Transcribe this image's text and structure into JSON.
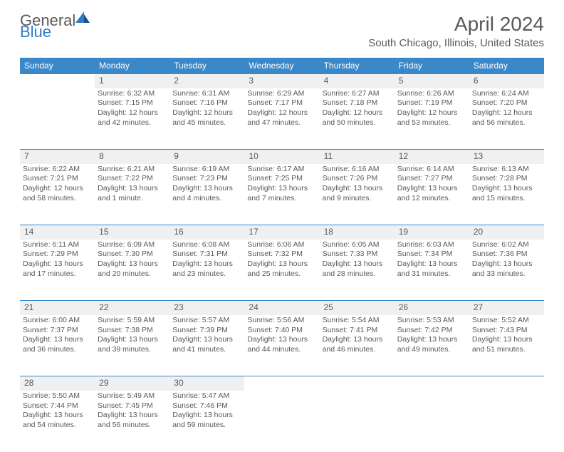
{
  "brand": {
    "part1": "General",
    "part2": "Blue"
  },
  "title": "April 2024",
  "location": "South Chicago, Illinois, United States",
  "colors": {
    "header_bg": "#3b88c8",
    "header_text": "#ffffff",
    "daynum_bg": "#eef0f2",
    "text": "#595959",
    "border": "#3b88c8",
    "page_bg": "#ffffff",
    "brand_blue": "#2f7cc4"
  },
  "weekdays": [
    "Sunday",
    "Monday",
    "Tuesday",
    "Wednesday",
    "Thursday",
    "Friday",
    "Saturday"
  ],
  "weeks": [
    {
      "nums": [
        "",
        "1",
        "2",
        "3",
        "4",
        "5",
        "6"
      ],
      "cells": [
        null,
        {
          "sr": "Sunrise: 6:32 AM",
          "ss": "Sunset: 7:15 PM",
          "d1": "Daylight: 12 hours",
          "d2": "and 42 minutes."
        },
        {
          "sr": "Sunrise: 6:31 AM",
          "ss": "Sunset: 7:16 PM",
          "d1": "Daylight: 12 hours",
          "d2": "and 45 minutes."
        },
        {
          "sr": "Sunrise: 6:29 AM",
          "ss": "Sunset: 7:17 PM",
          "d1": "Daylight: 12 hours",
          "d2": "and 47 minutes."
        },
        {
          "sr": "Sunrise: 6:27 AM",
          "ss": "Sunset: 7:18 PM",
          "d1": "Daylight: 12 hours",
          "d2": "and 50 minutes."
        },
        {
          "sr": "Sunrise: 6:26 AM",
          "ss": "Sunset: 7:19 PM",
          "d1": "Daylight: 12 hours",
          "d2": "and 53 minutes."
        },
        {
          "sr": "Sunrise: 6:24 AM",
          "ss": "Sunset: 7:20 PM",
          "d1": "Daylight: 12 hours",
          "d2": "and 56 minutes."
        }
      ]
    },
    {
      "nums": [
        "7",
        "8",
        "9",
        "10",
        "11",
        "12",
        "13"
      ],
      "cells": [
        {
          "sr": "Sunrise: 6:22 AM",
          "ss": "Sunset: 7:21 PM",
          "d1": "Daylight: 12 hours",
          "d2": "and 58 minutes."
        },
        {
          "sr": "Sunrise: 6:21 AM",
          "ss": "Sunset: 7:22 PM",
          "d1": "Daylight: 13 hours",
          "d2": "and 1 minute."
        },
        {
          "sr": "Sunrise: 6:19 AM",
          "ss": "Sunset: 7:23 PM",
          "d1": "Daylight: 13 hours",
          "d2": "and 4 minutes."
        },
        {
          "sr": "Sunrise: 6:17 AM",
          "ss": "Sunset: 7:25 PM",
          "d1": "Daylight: 13 hours",
          "d2": "and 7 minutes."
        },
        {
          "sr": "Sunrise: 6:16 AM",
          "ss": "Sunset: 7:26 PM",
          "d1": "Daylight: 13 hours",
          "d2": "and 9 minutes."
        },
        {
          "sr": "Sunrise: 6:14 AM",
          "ss": "Sunset: 7:27 PM",
          "d1": "Daylight: 13 hours",
          "d2": "and 12 minutes."
        },
        {
          "sr": "Sunrise: 6:13 AM",
          "ss": "Sunset: 7:28 PM",
          "d1": "Daylight: 13 hours",
          "d2": "and 15 minutes."
        }
      ]
    },
    {
      "nums": [
        "14",
        "15",
        "16",
        "17",
        "18",
        "19",
        "20"
      ],
      "cells": [
        {
          "sr": "Sunrise: 6:11 AM",
          "ss": "Sunset: 7:29 PM",
          "d1": "Daylight: 13 hours",
          "d2": "and 17 minutes."
        },
        {
          "sr": "Sunrise: 6:09 AM",
          "ss": "Sunset: 7:30 PM",
          "d1": "Daylight: 13 hours",
          "d2": "and 20 minutes."
        },
        {
          "sr": "Sunrise: 6:08 AM",
          "ss": "Sunset: 7:31 PM",
          "d1": "Daylight: 13 hours",
          "d2": "and 23 minutes."
        },
        {
          "sr": "Sunrise: 6:06 AM",
          "ss": "Sunset: 7:32 PM",
          "d1": "Daylight: 13 hours",
          "d2": "and 25 minutes."
        },
        {
          "sr": "Sunrise: 6:05 AM",
          "ss": "Sunset: 7:33 PM",
          "d1": "Daylight: 13 hours",
          "d2": "and 28 minutes."
        },
        {
          "sr": "Sunrise: 6:03 AM",
          "ss": "Sunset: 7:34 PM",
          "d1": "Daylight: 13 hours",
          "d2": "and 31 minutes."
        },
        {
          "sr": "Sunrise: 6:02 AM",
          "ss": "Sunset: 7:36 PM",
          "d1": "Daylight: 13 hours",
          "d2": "and 33 minutes."
        }
      ]
    },
    {
      "nums": [
        "21",
        "22",
        "23",
        "24",
        "25",
        "26",
        "27"
      ],
      "cells": [
        {
          "sr": "Sunrise: 6:00 AM",
          "ss": "Sunset: 7:37 PM",
          "d1": "Daylight: 13 hours",
          "d2": "and 36 minutes."
        },
        {
          "sr": "Sunrise: 5:59 AM",
          "ss": "Sunset: 7:38 PM",
          "d1": "Daylight: 13 hours",
          "d2": "and 39 minutes."
        },
        {
          "sr": "Sunrise: 5:57 AM",
          "ss": "Sunset: 7:39 PM",
          "d1": "Daylight: 13 hours",
          "d2": "and 41 minutes."
        },
        {
          "sr": "Sunrise: 5:56 AM",
          "ss": "Sunset: 7:40 PM",
          "d1": "Daylight: 13 hours",
          "d2": "and 44 minutes."
        },
        {
          "sr": "Sunrise: 5:54 AM",
          "ss": "Sunset: 7:41 PM",
          "d1": "Daylight: 13 hours",
          "d2": "and 46 minutes."
        },
        {
          "sr": "Sunrise: 5:53 AM",
          "ss": "Sunset: 7:42 PM",
          "d1": "Daylight: 13 hours",
          "d2": "and 49 minutes."
        },
        {
          "sr": "Sunrise: 5:52 AM",
          "ss": "Sunset: 7:43 PM",
          "d1": "Daylight: 13 hours",
          "d2": "and 51 minutes."
        }
      ]
    },
    {
      "nums": [
        "28",
        "29",
        "30",
        "",
        "",
        "",
        ""
      ],
      "cells": [
        {
          "sr": "Sunrise: 5:50 AM",
          "ss": "Sunset: 7:44 PM",
          "d1": "Daylight: 13 hours",
          "d2": "and 54 minutes."
        },
        {
          "sr": "Sunrise: 5:49 AM",
          "ss": "Sunset: 7:45 PM",
          "d1": "Daylight: 13 hours",
          "d2": "and 56 minutes."
        },
        {
          "sr": "Sunrise: 5:47 AM",
          "ss": "Sunset: 7:46 PM",
          "d1": "Daylight: 13 hours",
          "d2": "and 59 minutes."
        },
        null,
        null,
        null,
        null
      ]
    }
  ]
}
